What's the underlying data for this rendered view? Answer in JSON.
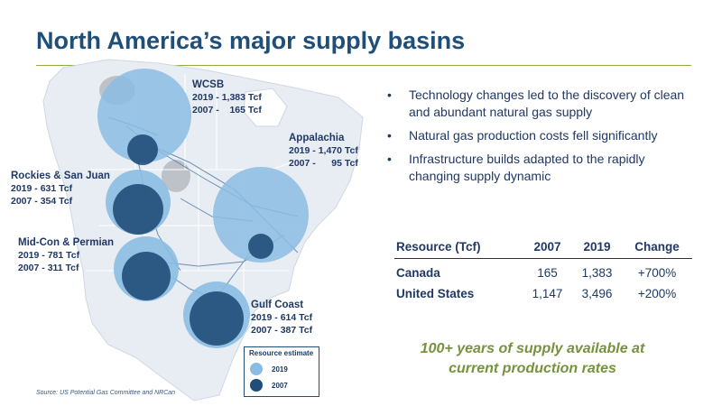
{
  "title": "North America’s major supply basins",
  "basins": [
    {
      "name": "WCSB",
      "lines": [
        "2019 - 1,383 Tcf",
        "2007 -    165 Tcf"
      ]
    },
    {
      "name": "Appalachia",
      "lines": [
        "2019 - 1,470 Tcf",
        "2007 -      95 Tcf"
      ]
    },
    {
      "name": "Rockies & San Juan",
      "lines": [
        "2019 - 631 Tcf",
        "2007 - 354 Tcf"
      ]
    },
    {
      "name": "Mid-Con & Permian",
      "lines": [
        "2019 - 781 Tcf",
        "2007 - 311 Tcf"
      ]
    },
    {
      "name": "Gulf Coast",
      "lines": [
        "2019 - 614 Tcf",
        "2007 - 387 Tcf"
      ]
    }
  ],
  "legend": {
    "title": "Resource estimate",
    "items": [
      {
        "label": "2019",
        "color": "#8bbce3"
      },
      {
        "label": "2007",
        "color": "#1f4e79"
      }
    ]
  },
  "bullets": [
    "Technology changes led to the discovery of clean and abundant natural gas supply",
    "Natural gas production costs fell significantly",
    "Infrastructure builds adapted to the rapidly changing supply dynamic"
  ],
  "table": {
    "headers": [
      "Resource (Tcf)",
      "2007",
      "2019",
      "Change"
    ],
    "rows": [
      [
        "Canada",
        "165",
        "1,383",
        "+700%"
      ],
      [
        "United States",
        "1,147",
        "3,496",
        "+200%"
      ]
    ]
  },
  "callout": [
    "100+ years of supply available at",
    "current production rates"
  ],
  "source": "Source: US Potential Gas Committee and NRCan"
}
